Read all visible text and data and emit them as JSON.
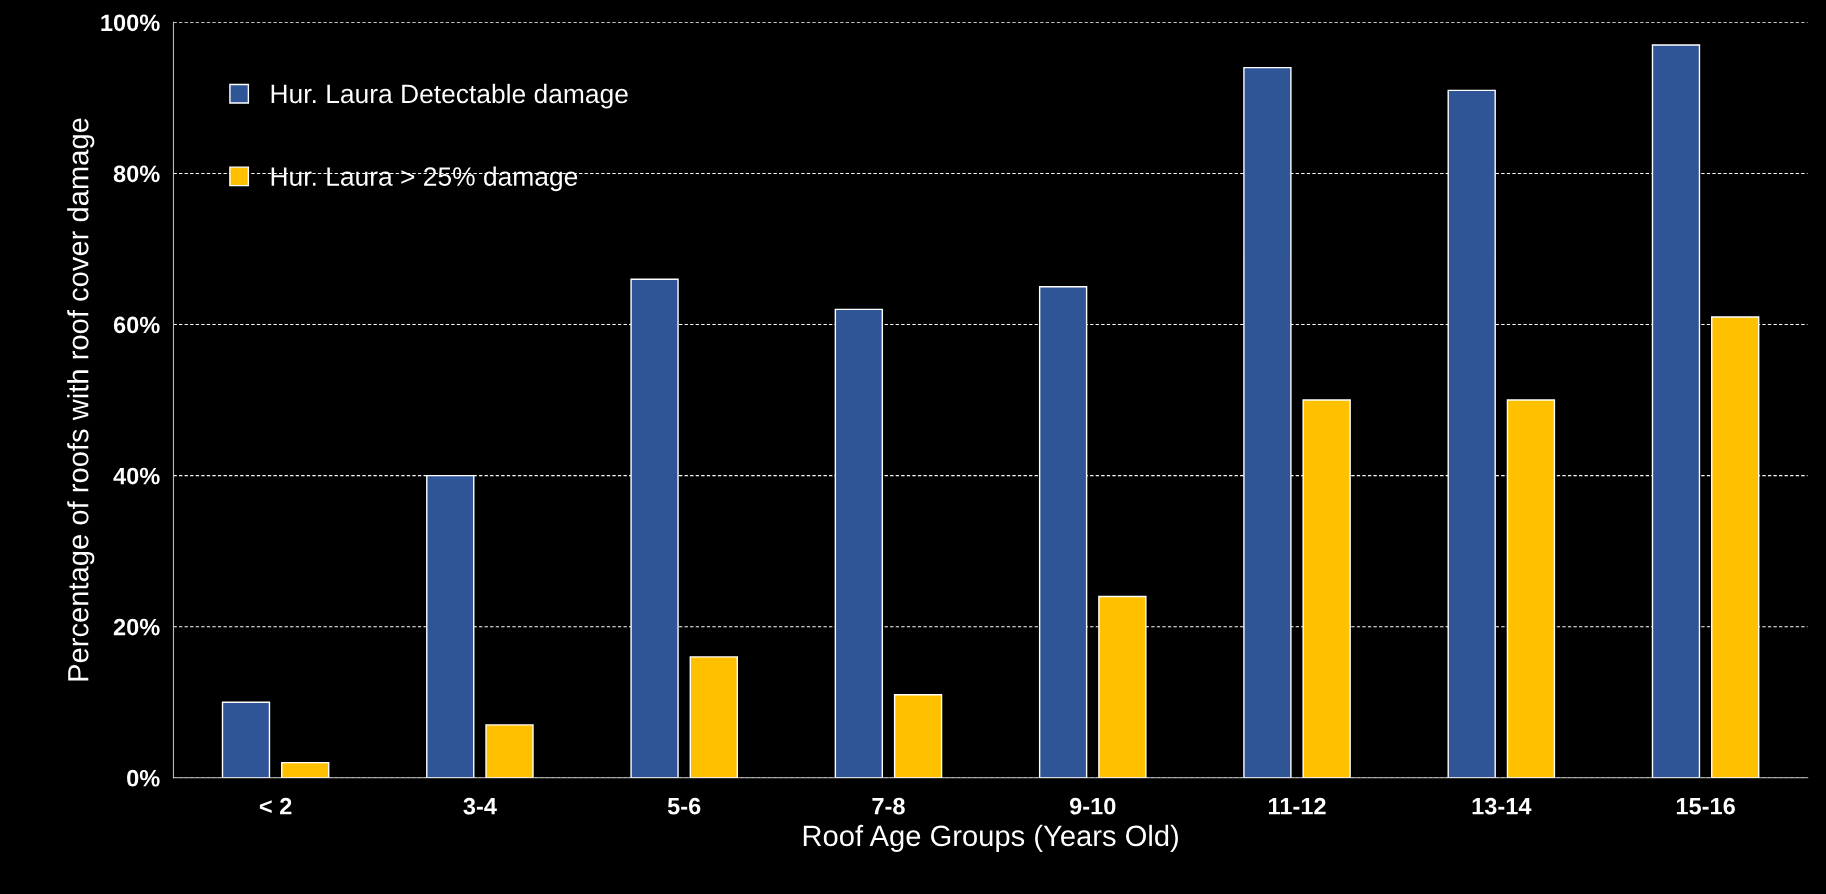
{
  "chart_data": {
    "type": "bar",
    "xlabel": "Roof Age Groups (Years Old)",
    "ylabel": "Percentage of roofs with roof cover damage",
    "categories": [
      "< 2",
      "3-4",
      "5-6",
      "7-8",
      "9-10",
      "11-12",
      "13-14",
      "15-16"
    ],
    "series": [
      {
        "name": "Hur. Laura Detectable damage",
        "color": "#2f5597",
        "values": [
          10,
          40,
          66,
          62,
          65,
          94,
          91,
          97
        ]
      },
      {
        "name": "Hur. Laura > 25% damage",
        "color": "#ffc000",
        "values": [
          2,
          7,
          16,
          11,
          24,
          50,
          50,
          61
        ]
      }
    ],
    "ylim": [
      0,
      100
    ],
    "yticks": [
      {
        "value": 0,
        "label": "0%"
      },
      {
        "value": 20,
        "label": "20%"
      },
      {
        "value": 40,
        "label": "40%"
      },
      {
        "value": 60,
        "label": "60%"
      },
      {
        "value": 80,
        "label": "80%"
      },
      {
        "value": 100,
        "label": "100%"
      }
    ],
    "grid": "y",
    "legend": "top left"
  }
}
